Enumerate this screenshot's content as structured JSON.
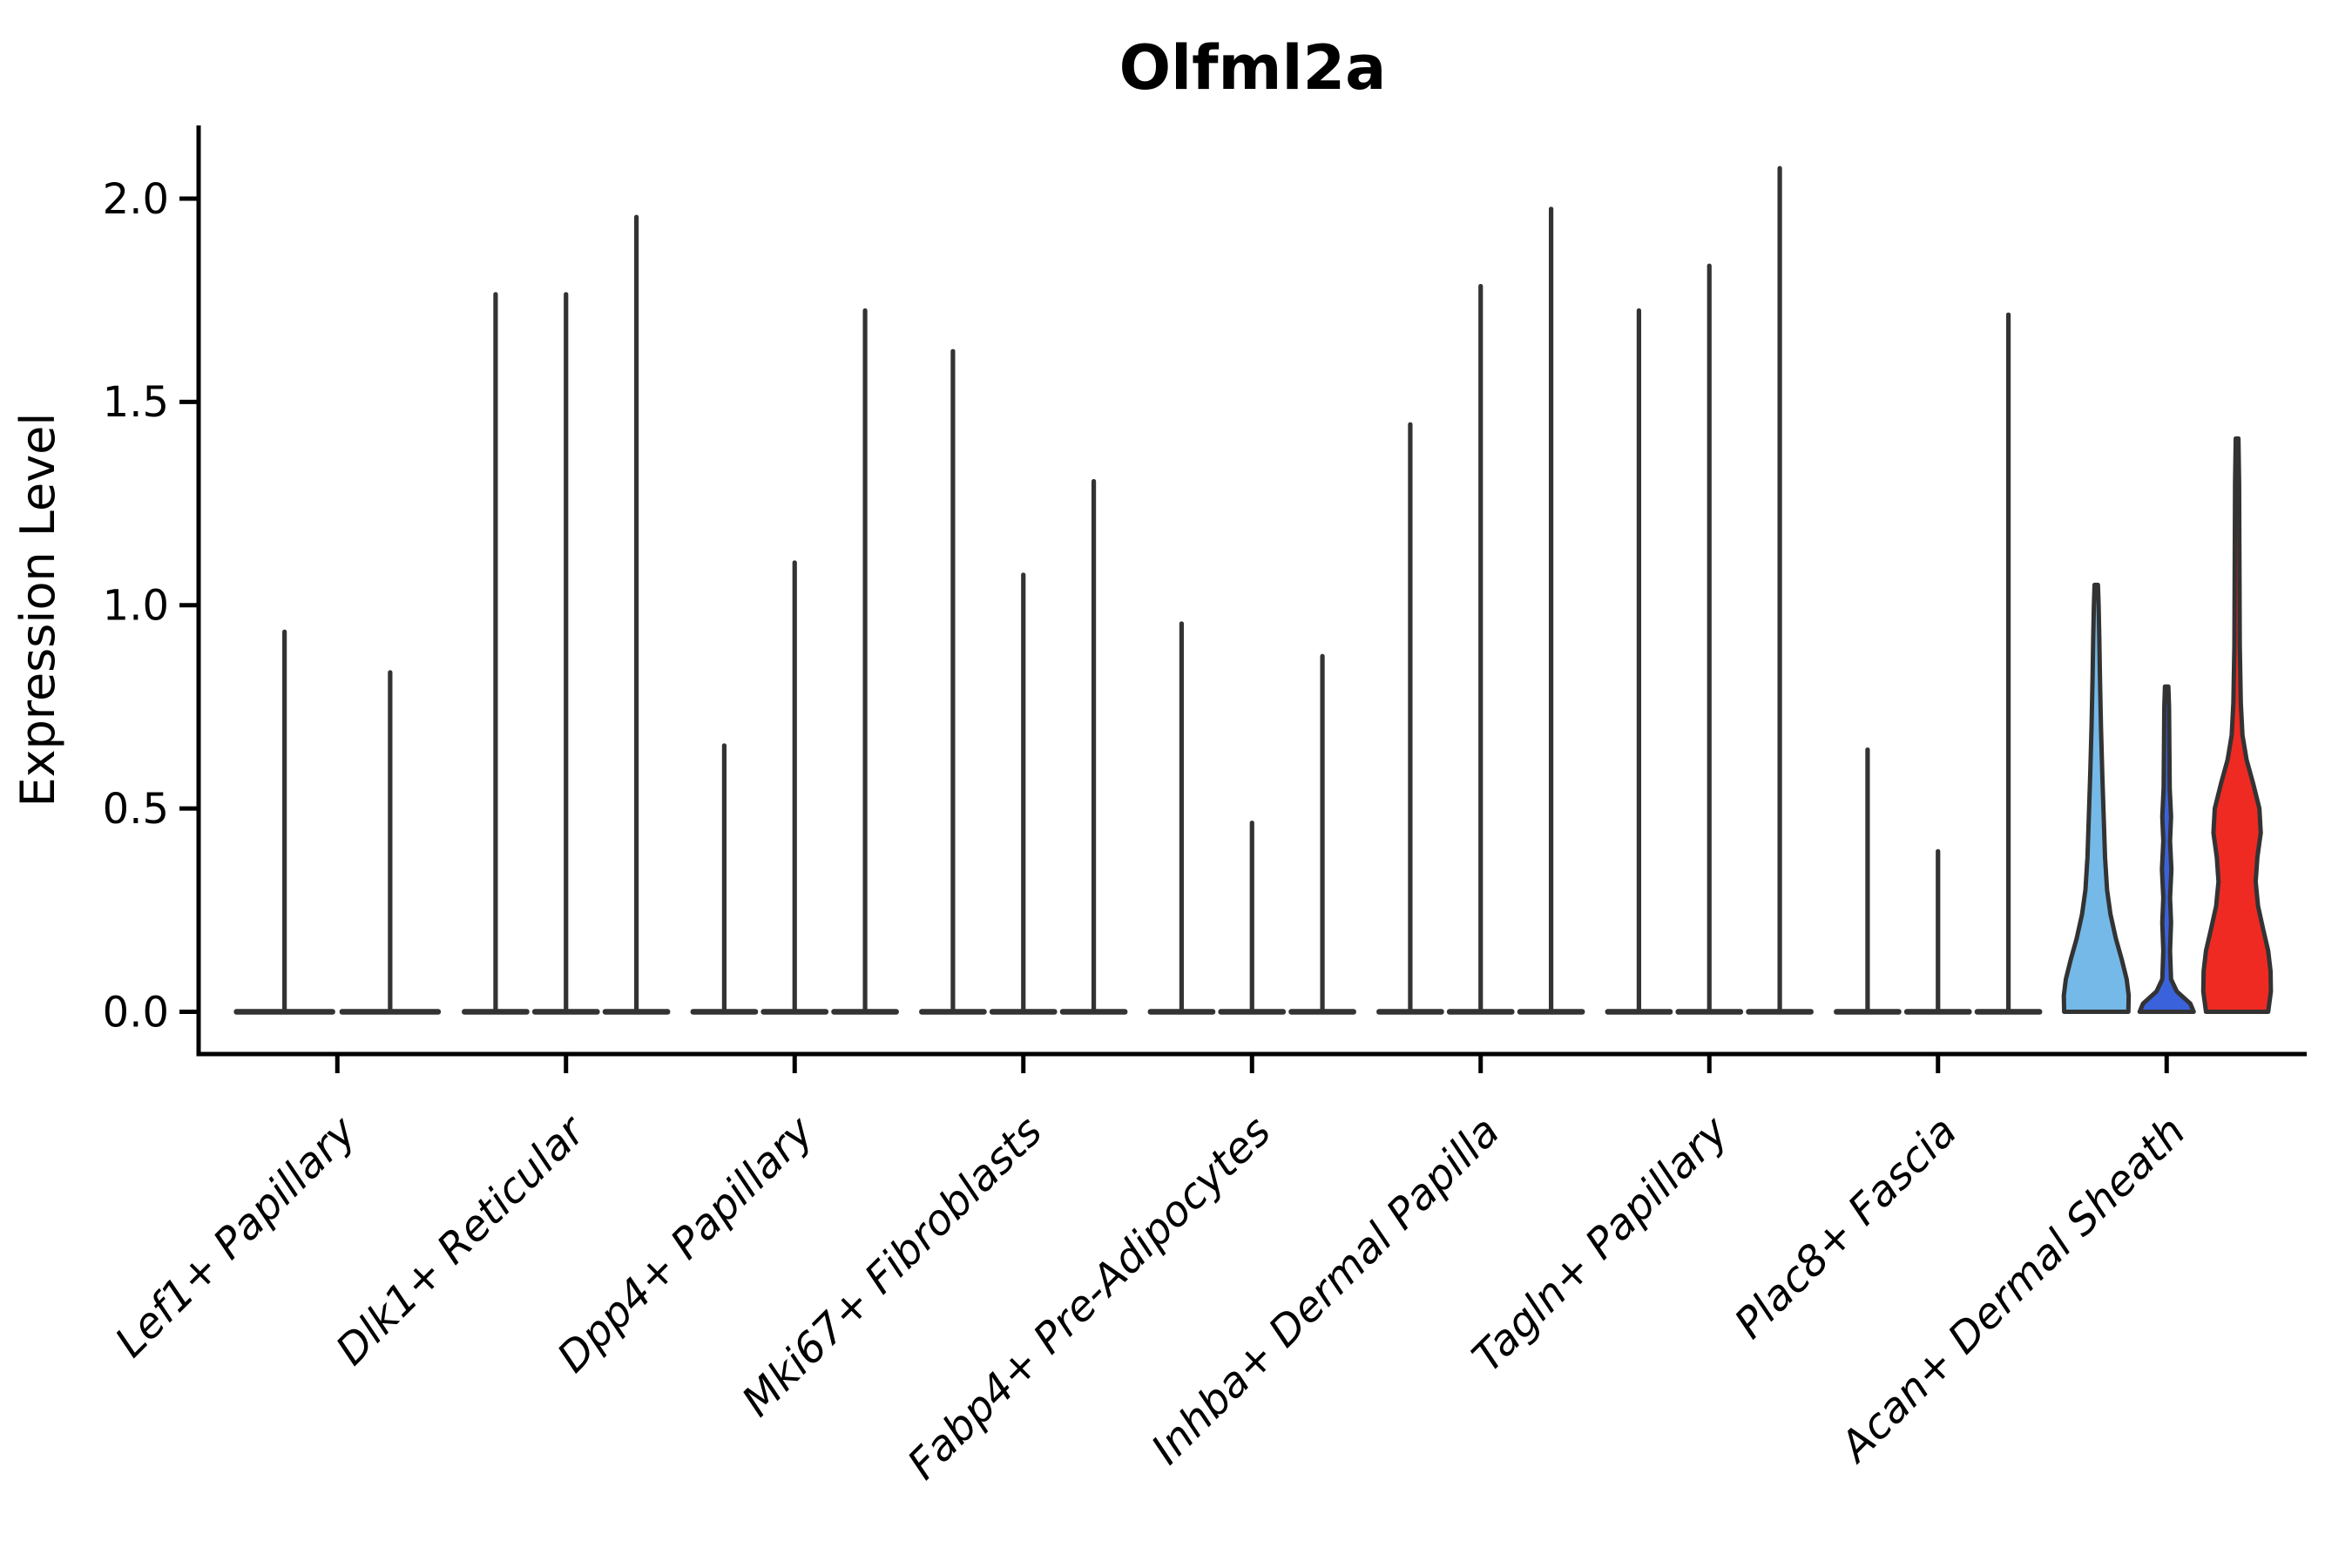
{
  "figure": {
    "title": "Olfml2a"
  },
  "y_axis": {
    "label": "Expression Level",
    "tick_labels": [
      "0.0",
      "0.5",
      "1.0",
      "1.5",
      "2.0"
    ],
    "tick_values": [
      0.0,
      0.5,
      1.0,
      1.5,
      2.0
    ]
  },
  "x_axis": {
    "categories": [
      "Lef1+ Papillary",
      "Dlk1+ Reticular",
      "Dpp4+ Papillary",
      "Mki67+ Fibroblasts",
      "Fabp4+ Pre-Adipocytes",
      "Inhba+ Dermal Papilla",
      "Tagln+ Papillary",
      "Plac8+ Fascia",
      "Acan+ Dermal Sheath"
    ]
  },
  "colors": {
    "ink": "#333333",
    "axis": "#000000",
    "light_blue": "#74b9e8",
    "dark_blue": "#3a62db",
    "red": "#ef2a23",
    "background": "#ffffff"
  },
  "chart_data": {
    "type": "violin",
    "title": "Olfml2a",
    "xlabel": "",
    "ylabel": "Expression Level",
    "ylim": [
      -0.104,
      2.18
    ],
    "y_ticks": [
      0.0,
      0.5,
      1.0,
      1.5,
      2.0
    ],
    "grid": false,
    "legend": "none",
    "categories": [
      "Lef1+ Papillary",
      "Dlk1+ Reticular",
      "Dpp4+ Papillary",
      "Mki67+ Fibroblasts",
      "Fabp4+ Pre-Adipocytes",
      "Inhba+ Dermal Papilla",
      "Tagln+ Papillary",
      "Plac8+ Fascia",
      "Acan+ Dermal Sheath"
    ],
    "groups": [
      {
        "category": "Lef1+ Papillary",
        "violins": [
          {
            "type": "spike",
            "peak": 0.94,
            "color_key": "ink"
          },
          {
            "type": "spike",
            "peak": 0.84,
            "color_key": "ink"
          }
        ]
      },
      {
        "category": "Dlk1+ Reticular",
        "violins": [
          {
            "type": "spike",
            "peak": 1.77,
            "color_key": "ink"
          },
          {
            "type": "spike",
            "peak": 1.77,
            "color_key": "ink"
          },
          {
            "type": "spike",
            "peak": 1.96,
            "color_key": "ink"
          }
        ]
      },
      {
        "category": "Dpp4+ Papillary",
        "violins": [
          {
            "type": "spike",
            "peak": 0.66,
            "color_key": "ink"
          },
          {
            "type": "spike",
            "peak": 1.11,
            "color_key": "ink"
          },
          {
            "type": "spike",
            "peak": 1.73,
            "color_key": "ink"
          }
        ]
      },
      {
        "category": "Mki67+ Fibroblasts",
        "violins": [
          {
            "type": "spike",
            "peak": 1.63,
            "color_key": "ink"
          },
          {
            "type": "spike",
            "peak": 1.08,
            "color_key": "ink"
          },
          {
            "type": "spike",
            "peak": 1.31,
            "color_key": "ink"
          }
        ]
      },
      {
        "category": "Fabp4+ Pre-Adipocytes",
        "violins": [
          {
            "type": "spike",
            "peak": 0.96,
            "color_key": "ink"
          },
          {
            "type": "spike",
            "peak": 0.47,
            "color_key": "ink"
          },
          {
            "type": "spike",
            "peak": 0.88,
            "color_key": "ink"
          }
        ]
      },
      {
        "category": "Inhba+ Dermal Papilla",
        "violins": [
          {
            "type": "spike",
            "peak": 1.45,
            "color_key": "ink"
          },
          {
            "type": "spike",
            "peak": 1.79,
            "color_key": "ink"
          },
          {
            "type": "spike",
            "peak": 1.98,
            "color_key": "ink"
          }
        ]
      },
      {
        "category": "Tagln+ Papillary",
        "violins": [
          {
            "type": "spike",
            "peak": 1.73,
            "color_key": "ink"
          },
          {
            "type": "spike",
            "peak": 1.84,
            "color_key": "ink"
          },
          {
            "type": "spike",
            "peak": 2.08,
            "color_key": "ink"
          }
        ]
      },
      {
        "category": "Plac8+ Fascia",
        "violins": [
          {
            "type": "spike",
            "peak": 0.65,
            "color_key": "ink"
          },
          {
            "type": "spike",
            "peak": 0.4,
            "color_key": "ink"
          },
          {
            "type": "spike",
            "peak": 1.72,
            "color_key": "ink"
          }
        ]
      },
      {
        "category": "Acan+ Dermal Sheath",
        "violins": [
          {
            "type": "shaped",
            "peak": 1.05,
            "color_key": "light_blue",
            "profile": [
              [
                0,
                0.95
              ],
              [
                0.04,
                0.96
              ],
              [
                0.08,
                0.9
              ],
              [
                0.13,
                0.75
              ],
              [
                0.18,
                0.58
              ],
              [
                0.24,
                0.42
              ],
              [
                0.3,
                0.32
              ],
              [
                0.38,
                0.26
              ],
              [
                0.48,
                0.22
              ],
              [
                0.58,
                0.18
              ],
              [
                0.7,
                0.14
              ],
              [
                0.82,
                0.11
              ],
              [
                0.92,
                0.09
              ],
              [
                1.0,
                0.07
              ],
              [
                1.05,
                0.05
              ]
            ]
          },
          {
            "type": "shaped",
            "peak": 0.8,
            "color_key": "dark_blue",
            "profile": [
              [
                0,
                0.8
              ],
              [
                0.02,
                0.7
              ],
              [
                0.05,
                0.3
              ],
              [
                0.08,
                0.13
              ],
              [
                0.15,
                0.1
              ],
              [
                0.22,
                0.13
              ],
              [
                0.28,
                0.1
              ],
              [
                0.35,
                0.14
              ],
              [
                0.42,
                0.1
              ],
              [
                0.48,
                0.13
              ],
              [
                0.55,
                0.09
              ],
              [
                0.65,
                0.08
              ],
              [
                0.75,
                0.07
              ],
              [
                0.8,
                0.05
              ]
            ]
          },
          {
            "type": "shaped",
            "peak": 1.41,
            "color_key": "red",
            "profile": [
              [
                0,
                0.92
              ],
              [
                0.05,
                1.0
              ],
              [
                0.1,
                0.99
              ],
              [
                0.15,
                0.92
              ],
              [
                0.2,
                0.78
              ],
              [
                0.26,
                0.62
              ],
              [
                0.32,
                0.55
              ],
              [
                0.38,
                0.6
              ],
              [
                0.44,
                0.7
              ],
              [
                0.5,
                0.66
              ],
              [
                0.56,
                0.48
              ],
              [
                0.62,
                0.28
              ],
              [
                0.68,
                0.16
              ],
              [
                0.76,
                0.11
              ],
              [
                0.9,
                0.08
              ],
              [
                1.1,
                0.07
              ],
              [
                1.3,
                0.06
              ],
              [
                1.41,
                0.04
              ]
            ]
          }
        ]
      }
    ]
  }
}
